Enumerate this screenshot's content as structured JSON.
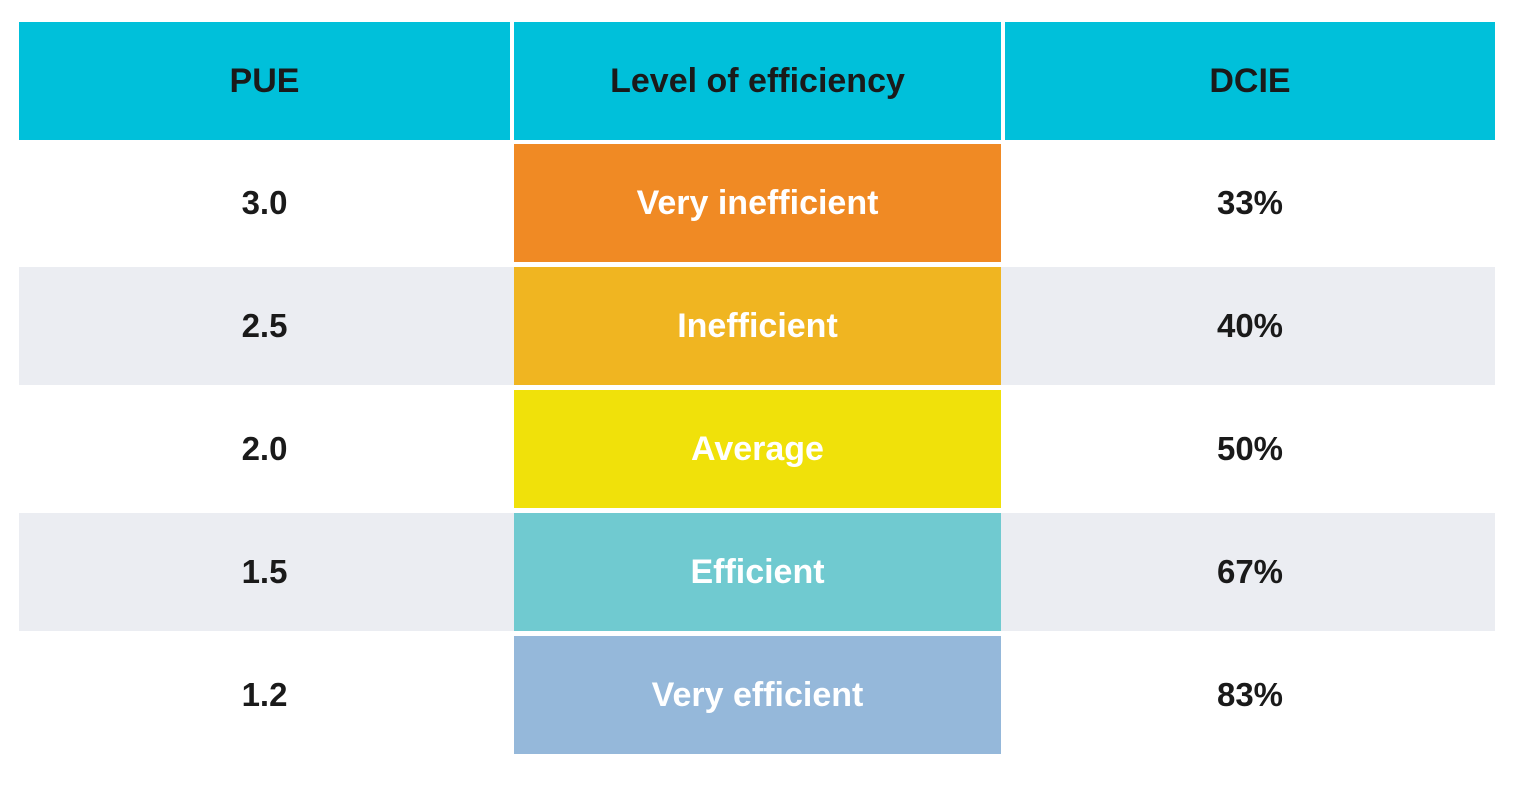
{
  "chart_data": {
    "type": "table",
    "columns": [
      "PUE",
      "Level of efficiency",
      "DCIE"
    ],
    "rows": [
      {
        "pue": "3.0",
        "level": "Very inefficient",
        "dcie": "33%",
        "color": "#f08a24"
      },
      {
        "pue": "2.5",
        "level": "Inefficient",
        "dcie": "40%",
        "color": "#f0b521"
      },
      {
        "pue": "2.0",
        "level": "Average",
        "dcie": "50%",
        "color": "#f0e10a"
      },
      {
        "pue": "1.5",
        "level": "Efficient",
        "dcie": "67%",
        "color": "#70cad0"
      },
      {
        "pue": "1.2",
        "level": "Very efficient",
        "dcie": "83%",
        "color": "#95b8da"
      }
    ],
    "header_color": "#00c0da",
    "alt_row_color": "#ebedf2"
  }
}
